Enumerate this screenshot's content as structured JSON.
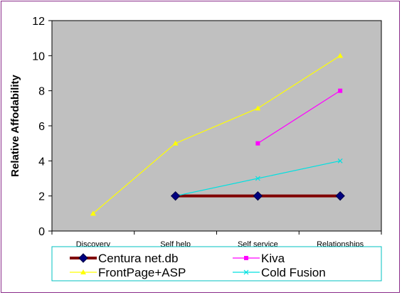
{
  "chart_data": {
    "type": "line",
    "categories": [
      "Discovery",
      "Self help",
      "Self service",
      "Relationships"
    ],
    "ylabel": "Relative Affodability",
    "xlabel": "",
    "ylim": [
      0,
      12
    ],
    "yticks": [
      0,
      2,
      4,
      6,
      8,
      10,
      12
    ],
    "grid": false,
    "plot_background": "#c0c0c0",
    "legend_position": "bottom",
    "series": [
      {
        "name": "Centura net.db",
        "values": [
          null,
          2,
          2,
          2
        ],
        "color": "#800000",
        "marker": "diamond",
        "marker_color": "#000080"
      },
      {
        "name": "Kiva",
        "values": [
          null,
          null,
          5,
          8
        ],
        "color": "#ff00ff",
        "marker": "square",
        "marker_color": "#ff00ff"
      },
      {
        "name": "FrontPage+ASP",
        "values": [
          1,
          5,
          7,
          10
        ],
        "color": "#ffff00",
        "marker": "triangle",
        "marker_color": "#ffff00"
      },
      {
        "name": "Cold Fusion",
        "values": [
          null,
          2,
          3,
          4
        ],
        "color": "#00e0e0",
        "marker": "x",
        "marker_color": "#00e0e0"
      }
    ]
  }
}
